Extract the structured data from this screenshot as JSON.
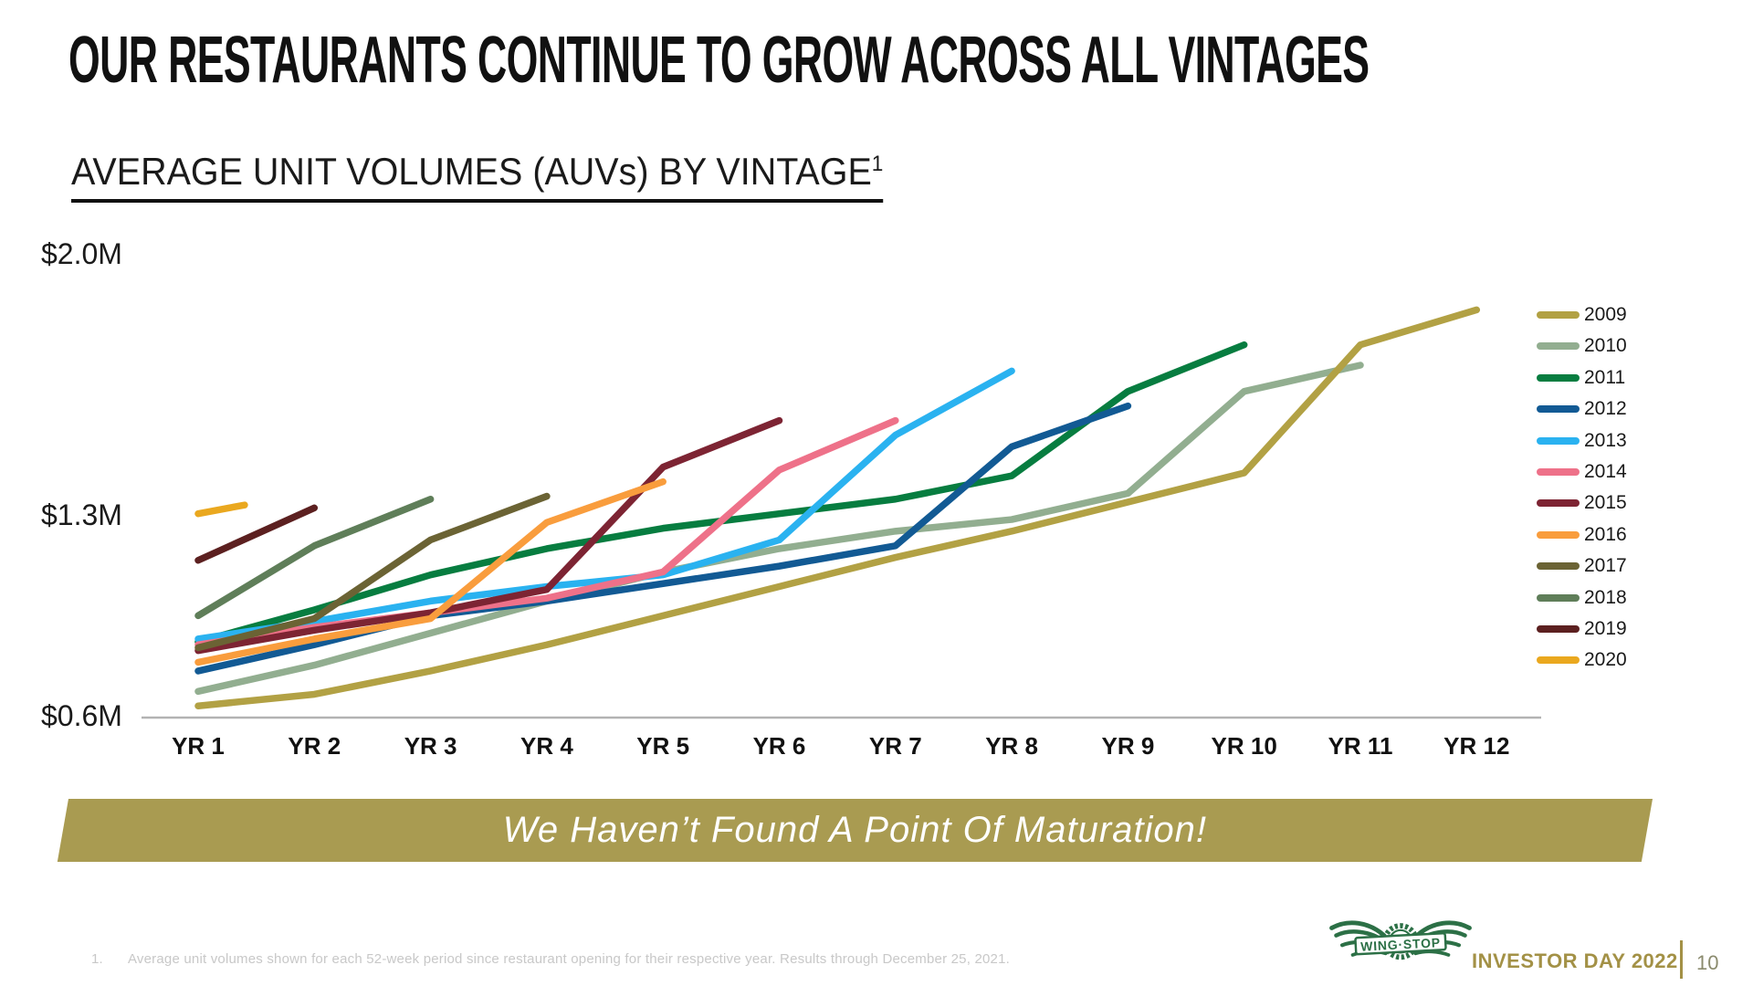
{
  "slide": {
    "title": "OUR RESTAURANTS CONTINUE TO GROW ACROSS ALL VINTAGES",
    "subtitle": "AVERAGE UNIT VOLUMES (AUVs) BY VINTAGE",
    "subtitle_superscript": "1",
    "banner_text": "We Haven’t Found A Point Of Maturation!",
    "footnote_number": "1.",
    "footnote_text": "Average unit volumes shown for each 52-week period since restaurant opening for their respective year. Results through December 25, 2021.",
    "footer": {
      "brand": "WING·STOP",
      "event": "INVESTOR DAY 2022",
      "page": "10"
    },
    "colors": {
      "banner_bg": "#a99b51",
      "footer_gold": "#a39146",
      "page_number_color": "#8b8b6e",
      "logo_green": "#2c7046",
      "axis_line": "#b3b3b3"
    }
  },
  "chart_data": {
    "type": "line",
    "title": "AVERAGE UNIT VOLUMES (AUVs) BY VINTAGE",
    "y_unit": "$M",
    "ylim": [
      0.6,
      2.0
    ],
    "y_tick_labels": [
      "$2.0M",
      "$1.3M",
      "$0.6M"
    ],
    "x_categories": [
      "YR 1",
      "YR 2",
      "YR 3",
      "YR 4",
      "YR 5",
      "YR 6",
      "YR 7",
      "YR 8",
      "YR 9",
      "YR 10",
      "YR 11",
      "YR 12"
    ],
    "grid": false,
    "legend_position": "right",
    "series": [
      {
        "name": "2009",
        "color": "#b2a144",
        "x": [
          1,
          2,
          3,
          4,
          5,
          6,
          7,
          8,
          9,
          10,
          11,
          12
        ],
        "values": [
          0.64,
          0.68,
          0.76,
          0.85,
          0.95,
          1.05,
          1.15,
          1.24,
          1.34,
          1.44,
          1.88,
          2.0
        ]
      },
      {
        "name": "2010",
        "color": "#92ae90",
        "x": [
          1,
          2,
          3,
          4,
          5,
          6,
          7,
          8,
          9,
          10,
          11
        ],
        "values": [
          0.69,
          0.78,
          0.89,
          1.0,
          1.1,
          1.18,
          1.24,
          1.28,
          1.37,
          1.72,
          1.81
        ]
      },
      {
        "name": "2011",
        "color": "#077d40",
        "x": [
          1,
          2,
          3,
          4,
          5,
          6,
          7,
          8,
          9,
          10
        ],
        "values": [
          0.86,
          0.97,
          1.09,
          1.18,
          1.25,
          1.3,
          1.35,
          1.43,
          1.72,
          1.88
        ]
      },
      {
        "name": "2012",
        "color": "#125a94",
        "x": [
          1,
          2,
          3,
          4,
          5,
          6,
          7,
          8,
          9
        ],
        "values": [
          0.76,
          0.85,
          0.95,
          1.0,
          1.06,
          1.12,
          1.19,
          1.53,
          1.67
        ]
      },
      {
        "name": "2013",
        "color": "#2ab2f0",
        "x": [
          1,
          2,
          3,
          4,
          5,
          6,
          7,
          8
        ],
        "values": [
          0.87,
          0.93,
          1.0,
          1.05,
          1.09,
          1.21,
          1.57,
          1.79
        ]
      },
      {
        "name": "2014",
        "color": "#ee7189",
        "x": [
          1,
          2,
          3,
          4,
          5,
          6,
          7
        ],
        "values": [
          0.85,
          0.91,
          0.96,
          1.01,
          1.1,
          1.45,
          1.62
        ]
      },
      {
        "name": "2015",
        "color": "#7d2433",
        "x": [
          1,
          2,
          3,
          4,
          5,
          6
        ],
        "values": [
          0.83,
          0.9,
          0.96,
          1.04,
          1.46,
          1.62
        ]
      },
      {
        "name": "2016",
        "color": "#f99d3d",
        "x": [
          1,
          2,
          3,
          4,
          5
        ],
        "values": [
          0.79,
          0.87,
          0.94,
          1.27,
          1.41
        ]
      },
      {
        "name": "2017",
        "color": "#6b6334",
        "x": [
          1,
          2,
          3,
          4
        ],
        "values": [
          0.84,
          0.94,
          1.21,
          1.36
        ]
      },
      {
        "name": "2018",
        "color": "#5f7e59",
        "x": [
          1,
          2,
          3
        ],
        "values": [
          0.95,
          1.19,
          1.35
        ]
      },
      {
        "name": "2019",
        "color": "#5c2020",
        "x": [
          1,
          2
        ],
        "values": [
          1.14,
          1.32
        ]
      },
      {
        "name": "2020",
        "color": "#eaa81f",
        "x": [
          1,
          1.4
        ],
        "values": [
          1.3,
          1.33
        ]
      }
    ]
  }
}
